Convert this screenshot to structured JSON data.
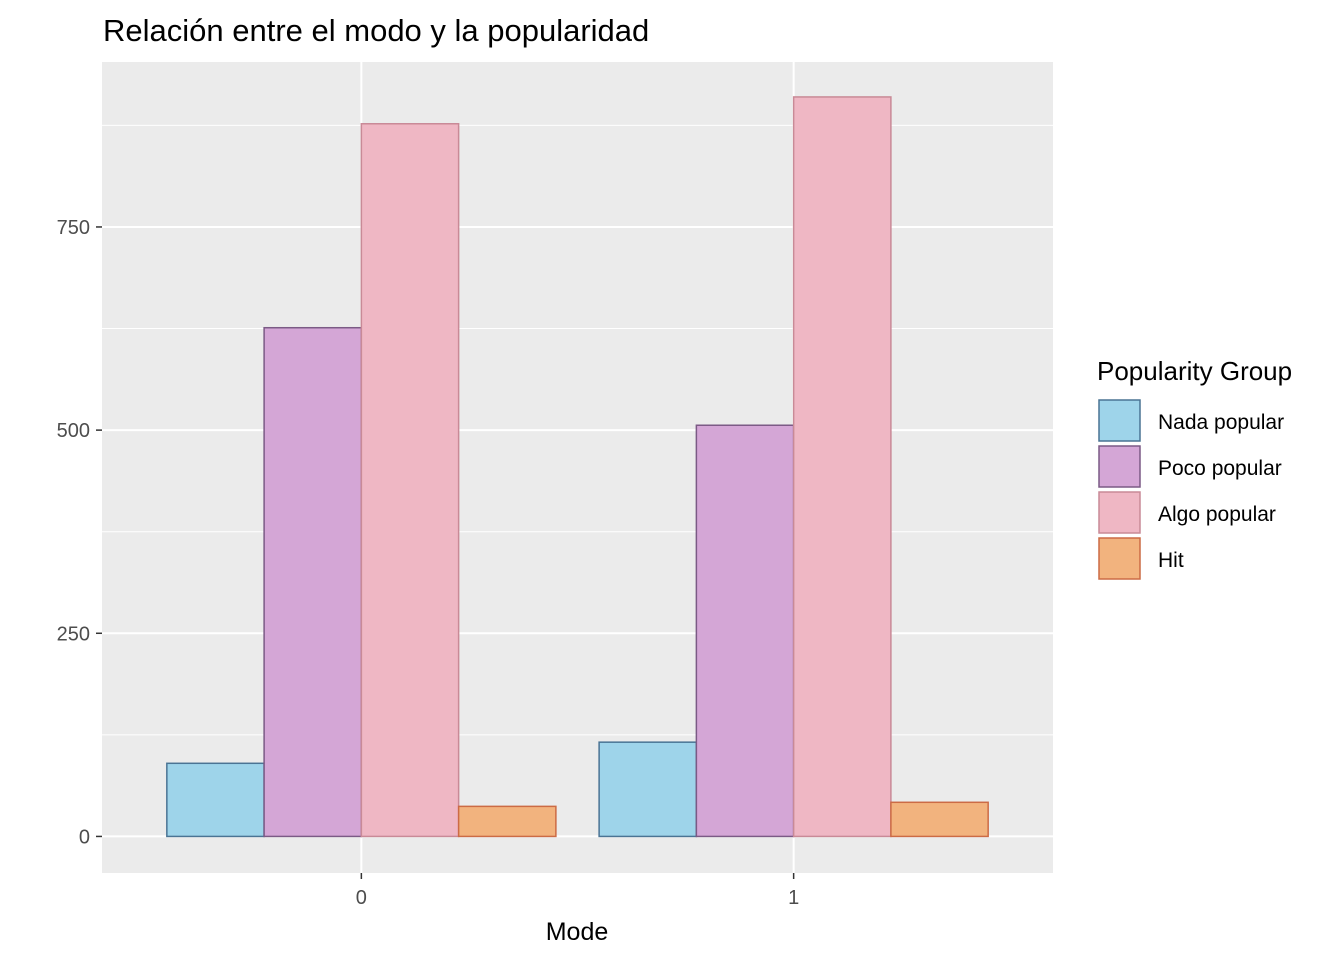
{
  "chart_data": {
    "type": "bar",
    "title": "Relación entre el modo y la popularidad",
    "xlabel": "Mode",
    "ylabel": "",
    "categories": [
      "0",
      "1"
    ],
    "series": [
      {
        "name": "Nada popular",
        "values": [
          90,
          116
        ],
        "fill": "#9ed4ea",
        "stroke": "#4a7494"
      },
      {
        "name": "Poco popular",
        "values": [
          626,
          506
        ],
        "fill": "#d4a6d6",
        "stroke": "#7b5a85"
      },
      {
        "name": "Algo popular",
        "values": [
          877,
          910
        ],
        "fill": "#efb7c4",
        "stroke": "#c98a97"
      },
      {
        "name": "Hit",
        "values": [
          37,
          42
        ],
        "fill": "#f2b37e",
        "stroke": "#cc6b45"
      }
    ],
    "yticks": [
      0,
      250,
      500,
      750
    ],
    "ylim": [
      -45,
      953
    ],
    "grid": true,
    "legend": {
      "title": "Popularity Group",
      "position": "right"
    },
    "panel_background": "#ebebeb"
  }
}
